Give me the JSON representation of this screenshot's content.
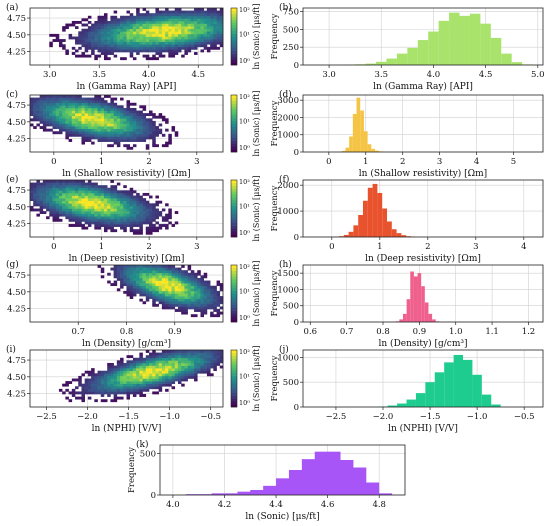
{
  "figure": {
    "heatmap_colors": [
      "#440154",
      "#3b528b",
      "#21918c",
      "#5ec962",
      "#fde725"
    ],
    "grid": true
  },
  "chart_data": [
    {
      "panel": "(a)",
      "type": "heatmap",
      "xlabel": "ln (Gamma Ray) [API]",
      "ylabel": "",
      "xlim": [
        2.8,
        4.75
      ],
      "ylim": [
        4.05,
        4.9
      ],
      "xticks": [
        "3.0",
        "3.5",
        "4.0",
        "4.5"
      ],
      "yticks": [
        "4.25",
        "4.50",
        "4.75"
      ],
      "colorbar": {
        "label": "ln (Sonic) [μs/ft]",
        "ticks": [
          "10⁰",
          "10¹",
          "10²"
        ]
      },
      "density": {
        "center_x": 4.15,
        "center_y": 4.55,
        "spread_x": 0.35,
        "spread_y": 0.12,
        "slope": 0.12
      }
    },
    {
      "panel": "(b)",
      "type": "histogram",
      "xlabel": "ln (Gamma Ray) [API]",
      "ylabel": "Frequency",
      "color": "#a9e36b",
      "xlim": [
        2.75,
        5.05
      ],
      "ylim": [
        0,
        800
      ],
      "xticks": [
        "3.0",
        "3.5",
        "4.0",
        "4.5",
        "5.0"
      ],
      "yticks": [
        "0",
        "250",
        "500",
        "750"
      ],
      "x": [
        3.2,
        3.3,
        3.4,
        3.5,
        3.6,
        3.7,
        3.8,
        3.9,
        4.0,
        4.1,
        4.2,
        4.3,
        4.4,
        4.5,
        4.6,
        4.7,
        4.8,
        4.9
      ],
      "values": [
        5,
        10,
        20,
        45,
        90,
        160,
        240,
        350,
        470,
        620,
        735,
        690,
        720,
        580,
        380,
        160,
        40,
        8
      ]
    },
    {
      "panel": "(c)",
      "type": "heatmap",
      "xlabel": "ln (Shallow resistivity) [Ωm]",
      "ylabel": "",
      "xlim": [
        -0.5,
        3.55
      ],
      "ylim": [
        4.05,
        4.9
      ],
      "xticks": [
        "0",
        "1",
        "2",
        "3"
      ],
      "yticks": [
        "4.25",
        "4.50",
        "4.75"
      ],
      "colorbar": {
        "label": "ln (Sonic) [μs/ft]",
        "ticks": [
          "10⁰",
          "10¹",
          "10²"
        ]
      },
      "density": {
        "center_x": 0.8,
        "center_y": 4.55,
        "spread_x": 0.55,
        "spread_y": 0.12,
        "slope": -0.13
      }
    },
    {
      "panel": "(d)",
      "type": "histogram",
      "xlabel": "ln (Shallow resistivity) [Ωm]",
      "ylabel": "Frequency",
      "color": "#f5c445",
      "xlim": [
        -0.7,
        5.8
      ],
      "ylim": [
        0,
        3300
      ],
      "xticks": [
        "0",
        "1",
        "2",
        "3",
        "4",
        "5"
      ],
      "yticks": [
        "0",
        "1000",
        "2000",
        "3000"
      ],
      "x": [
        0.3,
        0.4,
        0.5,
        0.6,
        0.7,
        0.8,
        0.9,
        1.0,
        1.1,
        1.2,
        1.3,
        1.4,
        1.5,
        1.6
      ],
      "values": [
        10,
        60,
        250,
        900,
        2200,
        3150,
        2400,
        1200,
        450,
        180,
        80,
        40,
        20,
        10
      ]
    },
    {
      "panel": "(e)",
      "type": "heatmap",
      "xlabel": "ln (Deep resistivity) [Ωm]",
      "ylabel": "",
      "xlim": [
        -0.5,
        3.55
      ],
      "ylim": [
        4.05,
        4.9
      ],
      "xticks": [
        "0",
        "1",
        "2",
        "3"
      ],
      "yticks": [
        "4.25",
        "4.50",
        "4.75"
      ],
      "colorbar": {
        "label": "ln (Sonic) [μs/ft]",
        "ticks": [
          "10⁰",
          "10¹",
          "10²"
        ]
      },
      "density": {
        "center_x": 0.8,
        "center_y": 4.55,
        "spread_x": 0.55,
        "spread_y": 0.12,
        "slope": -0.12
      }
    },
    {
      "panel": "(f)",
      "type": "histogram",
      "xlabel": "ln (Deep resistivity) [Ωm]",
      "ylabel": "Frequency",
      "color": "#e8532e",
      "xlim": [
        -0.6,
        4.4
      ],
      "ylim": [
        0,
        2200
      ],
      "xticks": [
        "0",
        "1",
        "2",
        "3",
        "4"
      ],
      "yticks": [
        "0",
        "1000",
        "2000"
      ],
      "x": [
        0.1,
        0.2,
        0.3,
        0.4,
        0.5,
        0.6,
        0.7,
        0.8,
        0.9,
        1.0,
        1.1,
        1.2,
        1.3,
        1.4,
        1.5,
        1.6,
        1.7
      ],
      "values": [
        10,
        30,
        80,
        200,
        450,
        850,
        1400,
        1900,
        2050,
        1700,
        1100,
        600,
        300,
        150,
        70,
        30,
        10
      ]
    },
    {
      "panel": "(g)",
      "type": "heatmap",
      "xlabel": "ln (Density) [g/cm³]",
      "ylabel": "",
      "xlim": [
        0.6,
        1.0
      ],
      "ylim": [
        4.05,
        4.9
      ],
      "xticks": [
        "0.7",
        "0.8",
        "0.9"
      ],
      "yticks": [
        "4.25",
        "4.50",
        "4.75"
      ],
      "colorbar": {
        "label": "ln (Sonic) [μs/ft]",
        "ticks": [
          "10⁰",
          "10¹",
          "10²"
        ]
      },
      "density": {
        "center_x": 0.885,
        "center_y": 4.6,
        "spread_x": 0.045,
        "spread_y": 0.12,
        "slope": -2.0
      }
    },
    {
      "panel": "(h)",
      "type": "histogram",
      "xlabel": "ln (Density) [g/cm³]",
      "ylabel": "Frequency",
      "color": "#f0608e",
      "xlim": [
        0.58,
        1.24
      ],
      "ylim": [
        0,
        1750
      ],
      "xticks": [
        "0.6",
        "0.7",
        "0.8",
        "0.9",
        "1.0",
        "1.1",
        "1.2"
      ],
      "yticks": [
        "0",
        "500",
        "1000",
        "1500"
      ],
      "x": [
        0.84,
        0.85,
        0.86,
        0.87,
        0.88,
        0.89,
        0.9,
        0.91,
        0.92,
        0.93,
        0.94,
        0.95
      ],
      "values": [
        20,
        80,
        250,
        700,
        1550,
        1400,
        1500,
        1100,
        600,
        250,
        80,
        20
      ]
    },
    {
      "panel": "(i)",
      "type": "heatmap",
      "xlabel": "ln (NPHI) [V/V]",
      "ylabel": "",
      "xlim": [
        -2.7,
        -0.35
      ],
      "ylim": [
        4.05,
        4.9
      ],
      "xticks": [
        "−2.5",
        "−2.0",
        "−1.5",
        "−1.0",
        "−0.5"
      ],
      "yticks": [
        "4.25",
        "4.50",
        "4.75"
      ],
      "colorbar": {
        "label": "ln (Sonic) [μs/ft]",
        "ticks": [
          "10⁰",
          "10¹",
          "10²"
        ]
      },
      "density": {
        "center_x": -1.2,
        "center_y": 4.58,
        "spread_x": 0.35,
        "spread_y": 0.1,
        "slope": 0.28
      }
    },
    {
      "panel": "(j)",
      "type": "histogram",
      "xlabel": "ln (NPHI) [V/V]",
      "ylabel": "Frequency",
      "color": "#1fcc8f",
      "xlim": [
        -2.85,
        -0.3
      ],
      "ylim": [
        0,
        1150
      ],
      "xticks": [
        "−2.5",
        "−2.0",
        "−1.5",
        "−1.0",
        "−0.5"
      ],
      "yticks": [
        "0",
        "500",
        "1000"
      ],
      "x": [
        -2.0,
        -1.9,
        -1.8,
        -1.7,
        -1.6,
        -1.5,
        -1.4,
        -1.3,
        -1.2,
        -1.1,
        -1.0,
        -0.9,
        -0.8
      ],
      "values": [
        10,
        30,
        70,
        150,
        280,
        500,
        700,
        900,
        1050,
        950,
        650,
        250,
        50
      ]
    },
    {
      "panel": "(k)",
      "type": "histogram",
      "xlabel": "ln (Sonic) [μs/ft]",
      "ylabel": "Frequency",
      "color": "#a855f7",
      "xlim": [
        3.95,
        4.9
      ],
      "ylim": [
        0,
        600
      ],
      "xticks": [
        "4.0",
        "4.2",
        "4.4",
        "4.6",
        "4.8"
      ],
      "yticks": [
        "0",
        "500"
      ],
      "x": [
        4.1,
        4.2,
        4.3,
        4.35,
        4.4,
        4.45,
        4.5,
        4.55,
        4.6,
        4.65,
        4.7,
        4.75,
        4.8
      ],
      "values": [
        10,
        20,
        40,
        60,
        110,
        200,
        300,
        430,
        520,
        420,
        330,
        150,
        20
      ]
    }
  ]
}
